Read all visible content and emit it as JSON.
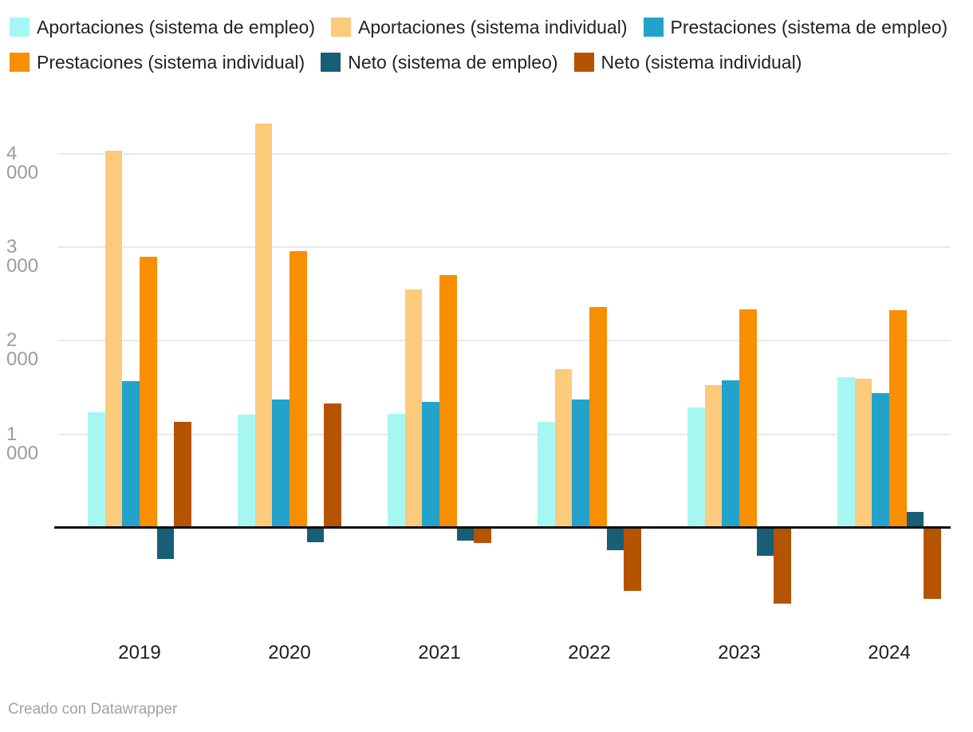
{
  "legend": {
    "items": [
      {
        "label": "Aportaciones (sistema de empleo)",
        "color": "#a6f7f2"
      },
      {
        "label": "Aportaciones (sistema individual)",
        "color": "#fbca7b"
      },
      {
        "label": "Prestaciones (sistema de empleo)",
        "color": "#23a3cb"
      },
      {
        "label": "Prestaciones (sistema individual)",
        "color": "#f78f00"
      },
      {
        "label": "Neto (sistema de empleo)",
        "color": "#175e76"
      },
      {
        "label": "Neto (sistema individual)",
        "color": "#b45400"
      }
    ]
  },
  "chart_data": {
    "type": "bar",
    "title": "",
    "xlabel": "",
    "ylabel": "",
    "categories": [
      "2019",
      "2020",
      "2021",
      "2022",
      "2023",
      "2024"
    ],
    "series": [
      {
        "name": "Aportaciones (sistema de empleo)",
        "color": "#a6f7f2",
        "values": [
          1240,
          1210,
          1220,
          1130,
          1290,
          1610
        ]
      },
      {
        "name": "Aportaciones (sistema individual)",
        "color": "#fbca7b",
        "values": [
          4030,
          4320,
          2550,
          1700,
          1530,
          1590
        ]
      },
      {
        "name": "Prestaciones (sistema de empleo)",
        "color": "#23a3cb",
        "values": [
          1570,
          1370,
          1350,
          1370,
          1580,
          1440
        ]
      },
      {
        "name": "Prestaciones (sistema individual)",
        "color": "#f78f00",
        "values": [
          2900,
          2960,
          2700,
          2360,
          2340,
          2330
        ]
      },
      {
        "name": "Neto (sistema de empleo)",
        "color": "#175e76",
        "values": [
          -330,
          -150,
          -140,
          -240,
          -300,
          170
        ]
      },
      {
        "name": "Neto (sistema individual)",
        "color": "#b45400",
        "values": [
          1130,
          1330,
          -160,
          -670,
          -810,
          -760
        ]
      }
    ],
    "y_ticks": [
      {
        "value": 4000,
        "label": "4 000"
      },
      {
        "value": 3000,
        "label": "3 000"
      },
      {
        "value": 2000,
        "label": "2 000"
      },
      {
        "value": 1000,
        "label": "1 000"
      }
    ],
    "ylim": [
      -900,
      4400
    ],
    "grid": "horizontal",
    "legend_position": "top"
  },
  "footer": {
    "credit": "Creado con Datawrapper"
  }
}
